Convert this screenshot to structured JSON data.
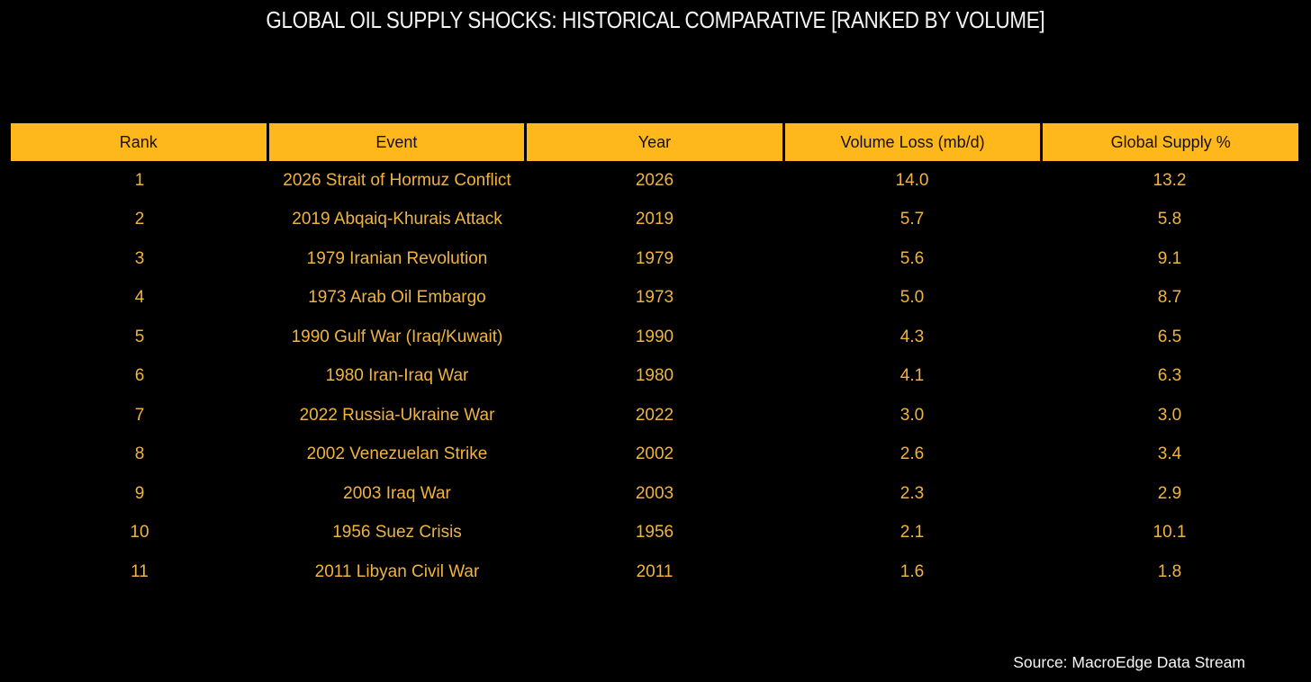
{
  "title": "GLOBAL OIL SUPPLY SHOCKS: HISTORICAL COMPARATIVE [RANKED BY VOLUME]",
  "source": "Source: MacroEdge Data Stream",
  "colors": {
    "background": "#000000",
    "header_bg": "#FFB81C",
    "header_text": "#181004",
    "body_text": "#F0B43E",
    "title_text": "#F4F4F4"
  },
  "chart_data": {
    "type": "table",
    "title": "GLOBAL OIL SUPPLY SHOCKS: HISTORICAL COMPARATIVE [RANKED BY VOLUME]",
    "columns": [
      "Rank",
      "Event",
      "Year",
      "Volume Loss (mb/d)",
      "Global Supply %"
    ],
    "rows": [
      [
        "1",
        "2026 Strait of Hormuz Conflict",
        "2026",
        "14.0",
        "13.2"
      ],
      [
        "2",
        "2019 Abqaiq-Khurais Attack",
        "2019",
        "5.7",
        "5.8"
      ],
      [
        "3",
        "1979 Iranian Revolution",
        "1979",
        "5.6",
        "9.1"
      ],
      [
        "4",
        "1973 Arab Oil Embargo",
        "1973",
        "5.0",
        "8.7"
      ],
      [
        "5",
        "1990 Gulf War (Iraq/Kuwait)",
        "1990",
        "4.3",
        "6.5"
      ],
      [
        "6",
        "1980 Iran-Iraq War",
        "1980",
        "4.1",
        "6.3"
      ],
      [
        "7",
        "2022 Russia-Ukraine War",
        "2022",
        "3.0",
        "3.0"
      ],
      [
        "8",
        "2002 Venezuelan Strike",
        "2002",
        "2.6",
        "3.4"
      ],
      [
        "9",
        "2003 Iraq War",
        "2003",
        "2.3",
        "2.9"
      ],
      [
        "10",
        "1956 Suez Crisis",
        "1956",
        "2.1",
        "10.1"
      ],
      [
        "11",
        "2011 Libyan Civil War",
        "2011",
        "1.6",
        "1.8"
      ]
    ],
    "layout": {
      "grid": false,
      "row_separators": false,
      "header_style": "solid-amber",
      "legend_position": "none"
    }
  }
}
